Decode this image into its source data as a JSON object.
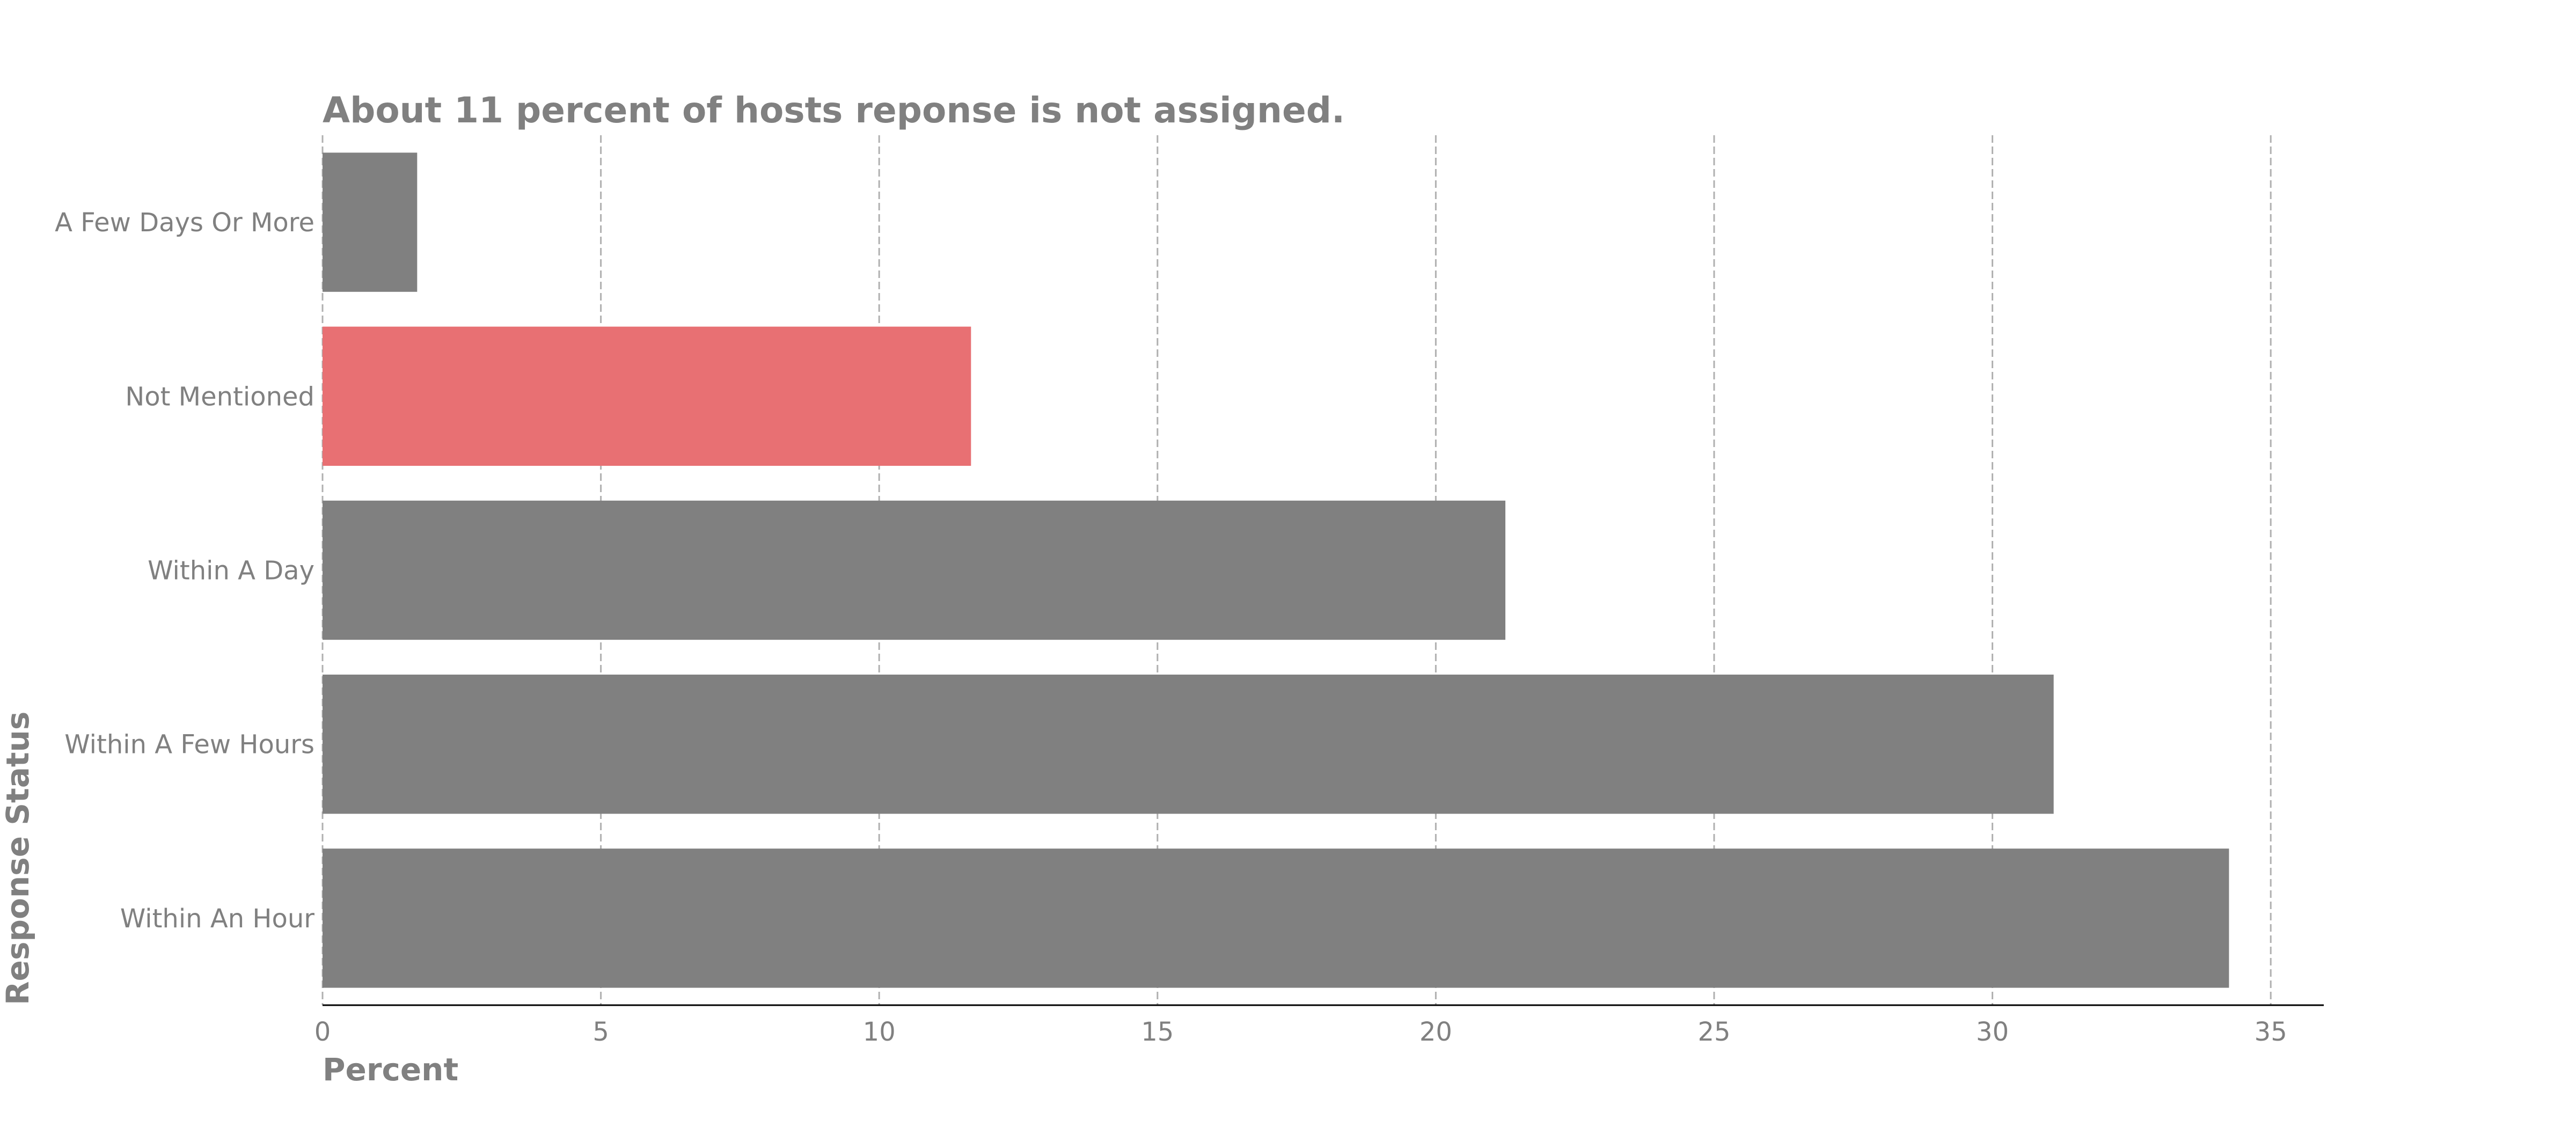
{
  "chart_data": {
    "type": "bar",
    "orientation": "horizontal",
    "title": "About 11 percent of hosts reponse is not assigned.",
    "xlabel": "Percent",
    "ylabel": "Response Status",
    "xlim": [
      0,
      36
    ],
    "xticks": [
      0,
      5,
      10,
      15,
      20,
      25,
      30,
      35
    ],
    "grid": "vertical dashed",
    "categories": [
      "A Few Days Or More",
      "Not Mentioned",
      "Within A Day",
      "Within A Few Hours",
      "Within An Hour"
    ],
    "values": [
      1.7,
      11.65,
      21.25,
      31.1,
      34.25
    ],
    "colors": [
      "#808080",
      "#e87073",
      "#808080",
      "#808080",
      "#808080"
    ],
    "highlight_category": "Not Mentioned",
    "highlight_color": "#e87073",
    "base_color": "#808080"
  }
}
